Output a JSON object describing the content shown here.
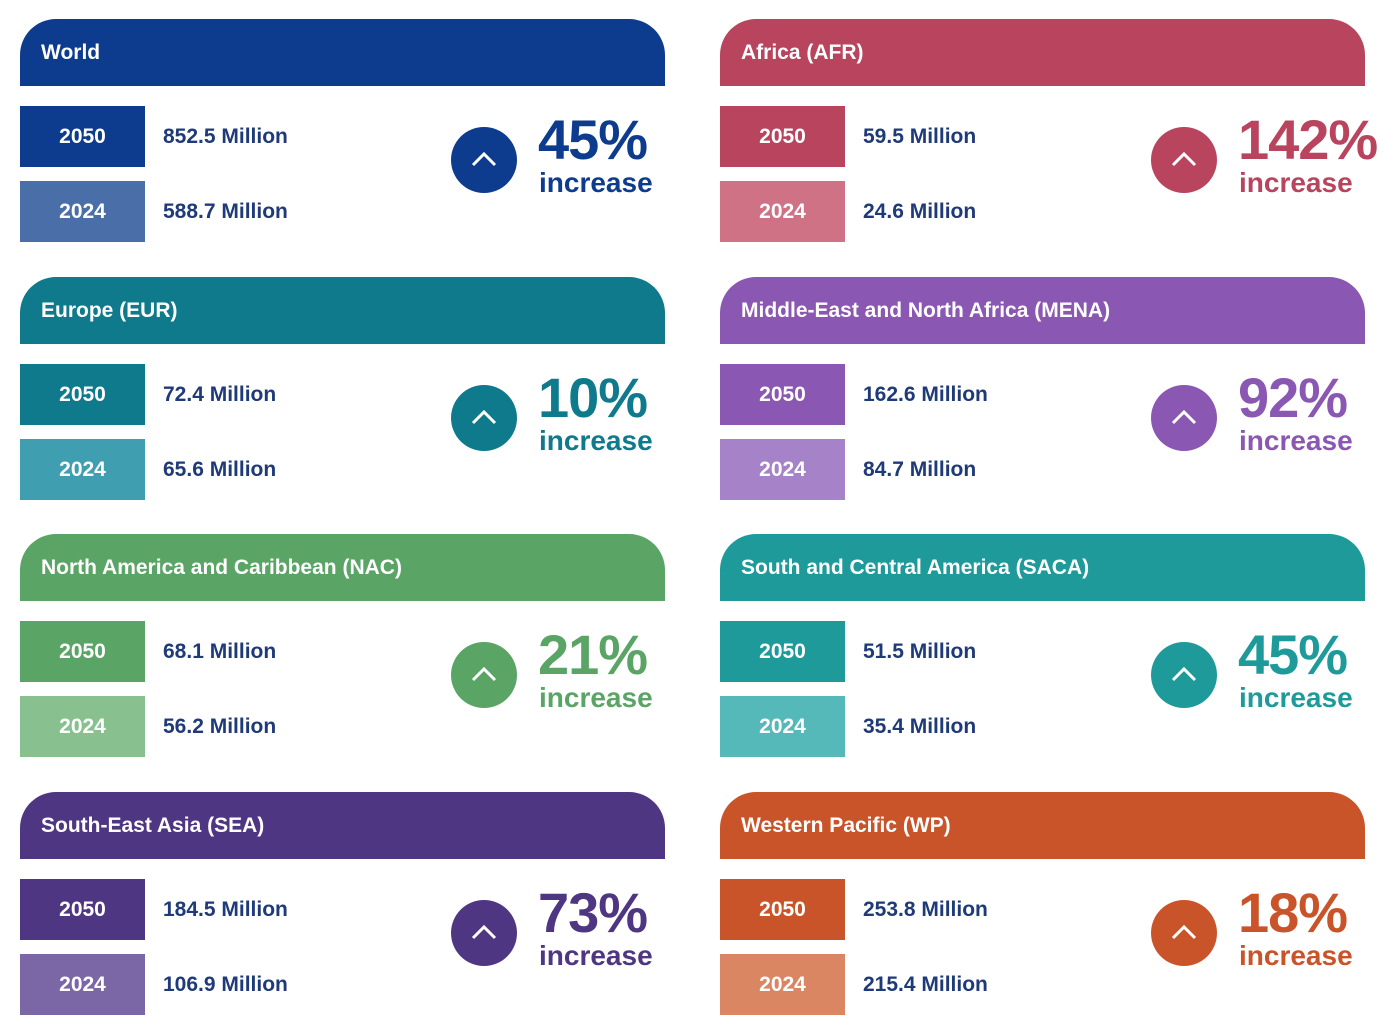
{
  "regions": [
    {
      "name": "World",
      "v2050": "852.5 Million",
      "v2024": "588.7 Million",
      "change": "45%",
      "change_label": "increase",
      "color": "#0d3b8e",
      "light": "#4a6fa8",
      "label_2050": "2050",
      "label_2024": "2024"
    },
    {
      "name": "Africa (AFR)",
      "v2050": "59.5 Million",
      "v2024": "24.6 Million",
      "change": "142%",
      "change_label": "increase",
      "color": "#b8445e",
      "light": "#cf7285",
      "label_2050": "2050",
      "label_2024": "2024"
    },
    {
      "name": "Europe (EUR)",
      "v2050": "72.4 Million",
      "v2024": "65.6 Million",
      "change": "10%",
      "change_label": "increase",
      "color": "#0e7a8c",
      "light": "#3f9fb0",
      "label_2050": "2050",
      "label_2024": "2024"
    },
    {
      "name": "Middle-East and North Africa (MENA)",
      "v2050": "162.6 Million",
      "v2024": "84.7 Million",
      "change": "92%",
      "change_label": "increase",
      "color": "#8a57b3",
      "light": "#a683c8",
      "label_2050": "2050",
      "label_2024": "2024"
    },
    {
      "name": "North America and Caribbean (NAC)",
      "v2050": "68.1 Million",
      "v2024": "56.2 Million",
      "change": "21%",
      "change_label": "increase",
      "color": "#5aa566",
      "light": "#88c08f",
      "label_2050": "2050",
      "label_2024": "2024"
    },
    {
      "name": "South and Central America (SACA)",
      "v2050": "51.5 Million",
      "v2024": "35.4 Million",
      "change": "45%",
      "change_label": "increase",
      "color": "#1e9a9a",
      "light": "#56b9b9",
      "label_2050": "2050",
      "label_2024": "2024"
    },
    {
      "name": "South-East Asia (SEA)",
      "v2050": "184.5 Million",
      "v2024": "106.9 Million",
      "change": "73%",
      "change_label": "increase",
      "color": "#4f3683",
      "light": "#7b66a6",
      "label_2050": "2050",
      "label_2024": "2024"
    },
    {
      "name": "Western Pacific (WP)",
      "v2050": "253.8 Million",
      "v2024": "215.4 Million",
      "change": "18%",
      "change_label": "increase",
      "color": "#c9542a",
      "light": "#da8663",
      "label_2050": "2050",
      "label_2024": "2024"
    }
  ]
}
